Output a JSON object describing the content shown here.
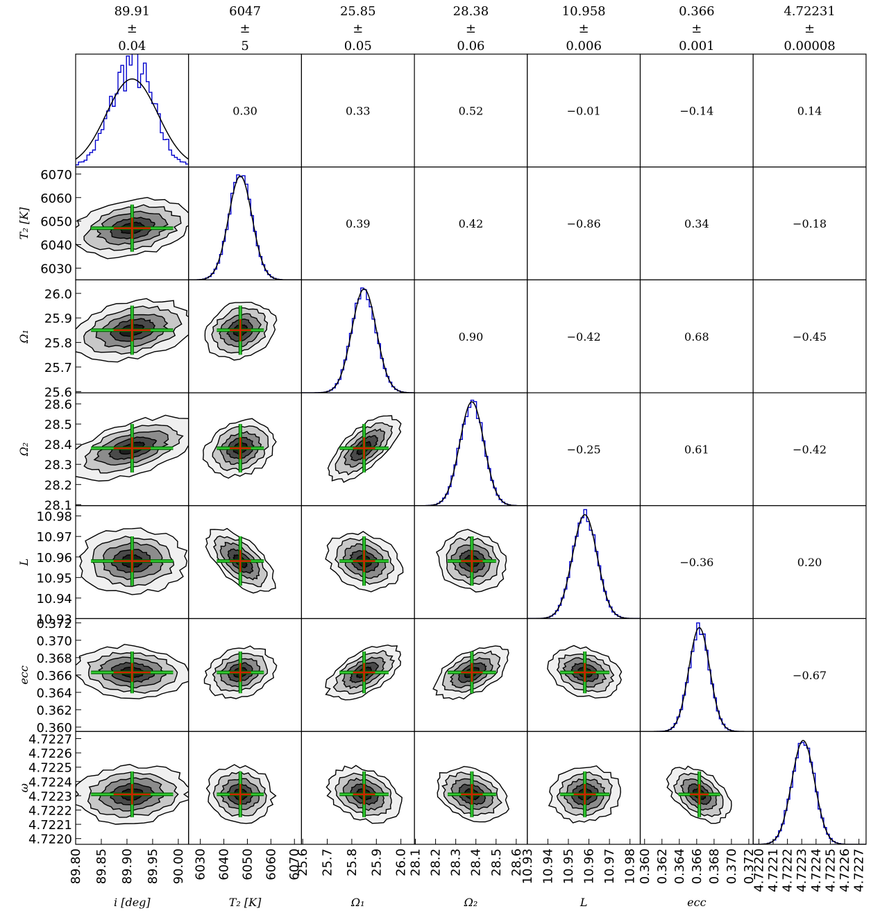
{
  "chart_data": {
    "type": "corner",
    "parameters": [
      {
        "key": "i",
        "label": "i [deg]",
        "summary": {
          "value": "89.91",
          "pm": "±",
          "error": "0.04"
        },
        "range": [
          89.8,
          90.02
        ],
        "xticks": [
          "89.80",
          "89.85",
          "89.90",
          "89.95",
          "90.00"
        ],
        "yticks": [],
        "center": 89.91,
        "sigma": 0.04
      },
      {
        "key": "T2",
        "label": "T₂ [K]",
        "summary": {
          "value": "6047",
          "pm": "±",
          "error": "5"
        },
        "range": [
          6025,
          6073
        ],
        "xticks": [
          "6030",
          "6040",
          "6050",
          "6060",
          "6070"
        ],
        "yticks": [
          "6030",
          "6040",
          "6050",
          "6060",
          "6070"
        ],
        "center": 6047,
        "sigma": 5
      },
      {
        "key": "Omega1",
        "label": "Ω₁",
        "summary": {
          "value": "25.85",
          "pm": "±",
          "error": "0.05"
        },
        "range": [
          25.595,
          26.055
        ],
        "xticks": [
          "25.6",
          "25.7",
          "25.8",
          "25.9",
          "26.0"
        ],
        "yticks": [
          "25.6",
          "25.7",
          "25.8",
          "25.9",
          "26.0"
        ],
        "center": 25.85,
        "sigma": 0.05
      },
      {
        "key": "Omega2",
        "label": "Ω₂",
        "summary": {
          "value": "28.38",
          "pm": "±",
          "error": "0.06"
        },
        "range": [
          28.095,
          28.655
        ],
        "xticks": [
          "28.1",
          "28.2",
          "28.3",
          "28.4",
          "28.5",
          "28.6"
        ],
        "yticks": [
          "28.1",
          "28.2",
          "28.3",
          "28.4",
          "28.5",
          "28.6"
        ],
        "center": 28.38,
        "sigma": 0.06
      },
      {
        "key": "L",
        "label": "L",
        "summary": {
          "value": "10.958",
          "pm": "±",
          "error": "0.006"
        },
        "range": [
          10.93,
          10.985
        ],
        "xticks": [
          "10.93",
          "10.94",
          "10.95",
          "10.96",
          "10.97",
          "10.98"
        ],
        "yticks": [
          "10.93",
          "10.94",
          "10.95",
          "10.96",
          "10.97",
          "10.98"
        ],
        "center": 10.958,
        "sigma": 0.006
      },
      {
        "key": "ecc",
        "label": "ecc",
        "summary": {
          "value": "0.366",
          "pm": "±",
          "error": "0.001"
        },
        "range": [
          0.3595,
          0.3725
        ],
        "xticks": [
          "0.360",
          "0.362",
          "0.364",
          "0.366",
          "0.368",
          "0.370",
          "0.372"
        ],
        "yticks": [
          "0.360",
          "0.362",
          "0.364",
          "0.366",
          "0.368",
          "0.370",
          "0.372"
        ],
        "center": 0.3663,
        "sigma": 0.0012
      },
      {
        "key": "omega",
        "label": "ω",
        "summary": {
          "value": "4.72231",
          "pm": "±",
          "error": "0.00008"
        },
        "range": [
          4.72196,
          4.72275
        ],
        "xticks": [
          "4.7220",
          "4.7221",
          "4.7222",
          "4.7223",
          "4.7224",
          "4.7225",
          "4.7226",
          "4.7227"
        ],
        "yticks": [
          "4.7220",
          "4.7221",
          "4.7222",
          "4.7223",
          "4.7224",
          "4.7225",
          "4.7226",
          "4.7227"
        ],
        "center": 4.72231,
        "sigma": 8e-05
      }
    ],
    "correlations": [
      [
        "",
        "0.30",
        "0.33",
        "0.52",
        "−0.01",
        "−0.14",
        "0.14"
      ],
      [
        "",
        "",
        "0.39",
        "0.42",
        "−0.86",
        "0.34",
        "−0.18"
      ],
      [
        "",
        "",
        "",
        "0.90",
        "−0.42",
        "0.68",
        "−0.45"
      ],
      [
        "",
        "",
        "",
        "",
        "−0.25",
        "0.61",
        "−0.42"
      ],
      [
        "",
        "",
        "",
        "",
        "",
        "−0.36",
        "0.20"
      ],
      [
        "",
        "",
        "",
        "",
        "",
        "",
        "−0.67"
      ],
      [
        "",
        "",
        "",
        "",
        "",
        "",
        ""
      ]
    ],
    "colors": {
      "histogram": "#0000cc",
      "fit": "#000000",
      "crosshair_outer": "#006400",
      "crosshair_inner": "#33cc33",
      "center": "#cc2200",
      "contours": [
        "#f0f0f0",
        "#c8c8c8",
        "#8c8c8c",
        "#4a4a4a",
        "#1e1e1e"
      ]
    }
  }
}
